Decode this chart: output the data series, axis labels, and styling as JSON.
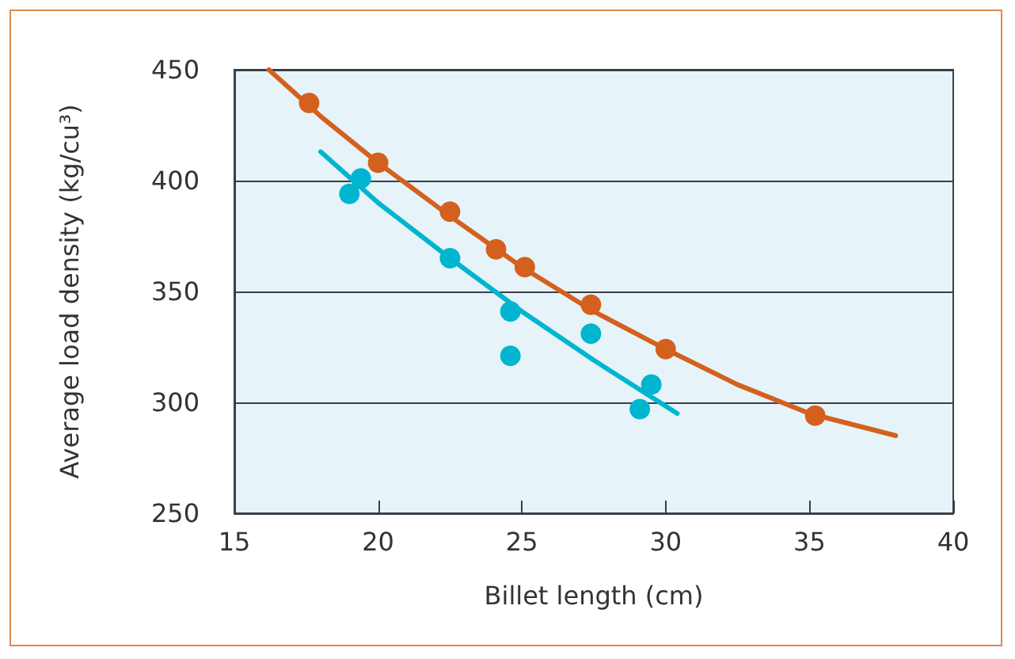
{
  "chart_data": {
    "type": "scatter",
    "xlabel": "Billet length (cm)",
    "ylabel": "Average load density (kg/cu³)",
    "xlim": [
      15,
      40
    ],
    "xticks": [
      15,
      20,
      25,
      30,
      35,
      40
    ],
    "ylim": [
      250,
      450
    ],
    "yticks": [
      250,
      300,
      350,
      400,
      450
    ],
    "grid": "y",
    "marker": "circle",
    "series": [
      {
        "type": "scatter",
        "color": "#d4601e",
        "x": [
          17.6,
          20.0,
          22.5,
          24.1,
          25.1,
          27.4,
          30.0,
          35.2
        ],
        "values": [
          435,
          408,
          386,
          369,
          361,
          344,
          324,
          294
        ]
      },
      {
        "type": "scatter",
        "color": "#00b5cf",
        "x": [
          19.0,
          19.4,
          22.5,
          24.6,
          24.6,
          27.4,
          29.5,
          29.1
        ],
        "values": [
          394,
          401,
          365,
          341,
          321,
          331,
          308,
          297
        ]
      },
      {
        "type": "line",
        "marker": "none",
        "color": "#d4601e",
        "x": [
          16.2,
          18,
          20,
          22.5,
          25,
          27.5,
          30,
          32.5,
          35,
          38
        ],
        "values": [
          450,
          429,
          408,
          384,
          361,
          341,
          324,
          308,
          295,
          285
        ]
      },
      {
        "type": "line",
        "marker": "none",
        "color": "#00b5cf",
        "x": [
          18.0,
          20,
          22.5,
          25,
          27.5,
          30.4
        ],
        "values": [
          413,
          390,
          365,
          341,
          319,
          295
        ]
      }
    ]
  }
}
